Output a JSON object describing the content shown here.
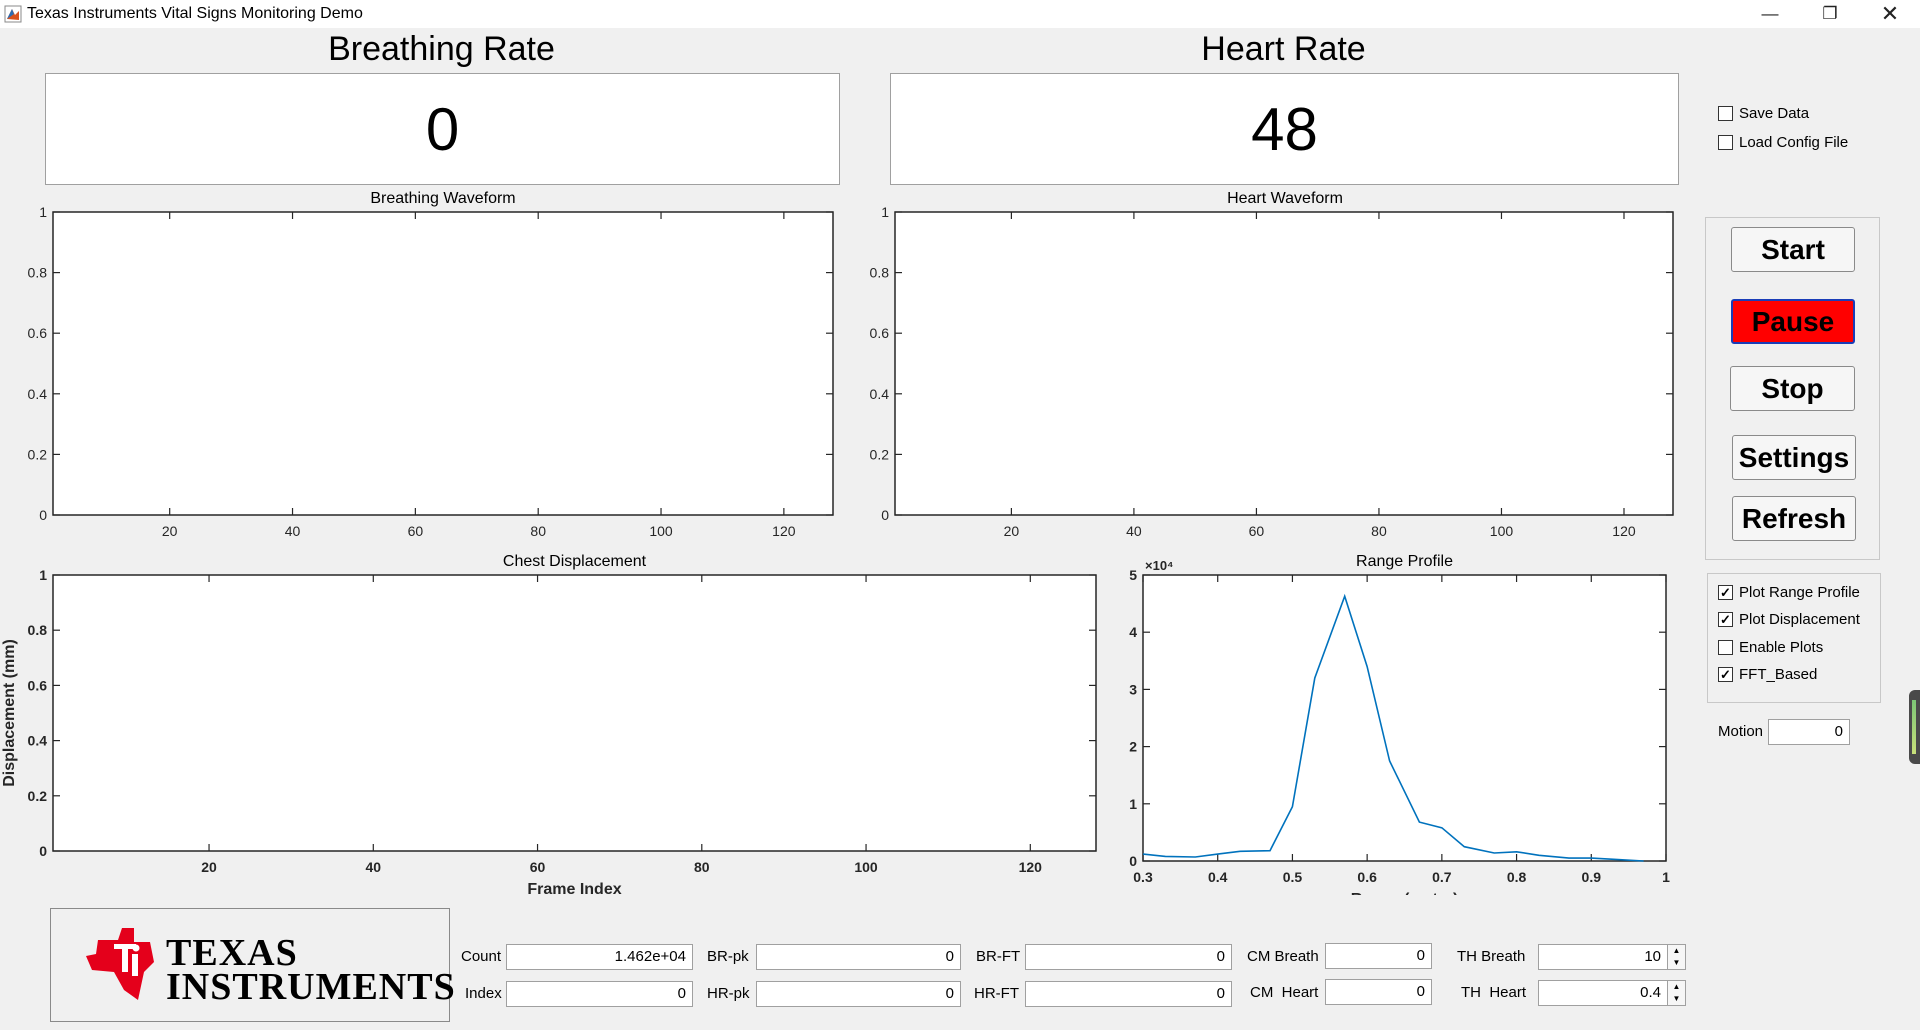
{
  "window": {
    "title": "Texas Instruments Vital Signs Monitoring Demo",
    "minimize_icon": "minimize-icon",
    "restore_icon": "restore-icon",
    "close_icon": "close-icon"
  },
  "breathing_rate": {
    "title": "Breathing Rate",
    "value": "0"
  },
  "heart_rate": {
    "title": "Heart Rate",
    "value": "48"
  },
  "options_top": {
    "save_data": "Save Data",
    "load_config": "Load Config File"
  },
  "buttons": {
    "start": "Start",
    "pause": "Pause",
    "stop": "Stop",
    "settings": "Settings",
    "refresh": "Refresh"
  },
  "options_plot": [
    {
      "label": "Plot Range Profile",
      "checked": true
    },
    {
      "label": "Plot Displacement",
      "checked": true
    },
    {
      "label": "Enable Plots",
      "checked": false
    },
    {
      "label": "FFT_Based",
      "checked": true
    }
  ],
  "motion": {
    "label": "Motion",
    "value": "0"
  },
  "logo": {
    "line1": "TEXAS",
    "line2": "INSTRUMENTS"
  },
  "fields": {
    "count": {
      "label": "Count",
      "value": "1.462e+04"
    },
    "index": {
      "label": "Index",
      "value": "0"
    },
    "br_pk": {
      "label": "BR-pk",
      "value": "0"
    },
    "hr_pk": {
      "label": "HR-pk",
      "value": "0"
    },
    "br_ft": {
      "label": "BR-FT",
      "value": "0"
    },
    "hr_ft": {
      "label": "HR-FT",
      "value": "0"
    },
    "cm_breath": {
      "label": "CM Breath",
      "value": "0"
    },
    "cm_heart": {
      "label": "CM  Heart",
      "value": "0"
    },
    "th_breath": {
      "label": "TH Breath",
      "value": "10"
    },
    "th_heart": {
      "label": "TH  Heart",
      "value": "0.4"
    }
  },
  "chart_data": [
    {
      "type": "line",
      "title": "Breathing Waveform",
      "xlabel": "",
      "ylabel": "",
      "xlim": [
        1,
        128
      ],
      "ylim": [
        0,
        1
      ],
      "xticks": [
        20,
        40,
        60,
        80,
        100,
        120
      ],
      "yticks": [
        0,
        0.2,
        0.4,
        0.6,
        0.8,
        1
      ],
      "series": []
    },
    {
      "type": "line",
      "title": "Heart Waveform",
      "xlabel": "",
      "ylabel": "",
      "xlim": [
        1,
        128
      ],
      "ylim": [
        0,
        1
      ],
      "xticks": [
        20,
        40,
        60,
        80,
        100,
        120
      ],
      "yticks": [
        0,
        0.2,
        0.4,
        0.6,
        0.8,
        1
      ],
      "series": []
    },
    {
      "type": "line",
      "title": "Chest Displacement",
      "xlabel": "Frame Index",
      "ylabel": "Displacement (mm)",
      "xlim": [
        1,
        128
      ],
      "ylim": [
        0,
        1
      ],
      "xticks": [
        20,
        40,
        60,
        80,
        100,
        120
      ],
      "yticks": [
        0,
        0.2,
        0.4,
        0.6,
        0.8,
        1
      ],
      "series": []
    },
    {
      "type": "line",
      "title": "Range Profile",
      "xlabel": "Range (meter)",
      "ylabel": "",
      "exponent_label": "×10⁴",
      "xlim": [
        0.3,
        1
      ],
      "ylim": [
        0,
        5
      ],
      "xticks": [
        0.3,
        0.4,
        0.5,
        0.6,
        0.7,
        0.8,
        0.9,
        1
      ],
      "yticks": [
        0,
        1,
        2,
        3,
        4,
        5
      ],
      "color": "#0072bd",
      "x": [
        0.3,
        0.33,
        0.37,
        0.4,
        0.43,
        0.47,
        0.5,
        0.53,
        0.57,
        0.6,
        0.63,
        0.67,
        0.7,
        0.73,
        0.77,
        0.8,
        0.83,
        0.87,
        0.9,
        0.93,
        0.97
      ],
      "y": [
        0.12,
        0.08,
        0.07,
        0.12,
        0.17,
        0.18,
        0.95,
        3.2,
        4.63,
        3.4,
        1.75,
        0.68,
        0.58,
        0.25,
        0.14,
        0.16,
        0.1,
        0.05,
        0.05,
        0.03,
        0.0
      ]
    }
  ]
}
